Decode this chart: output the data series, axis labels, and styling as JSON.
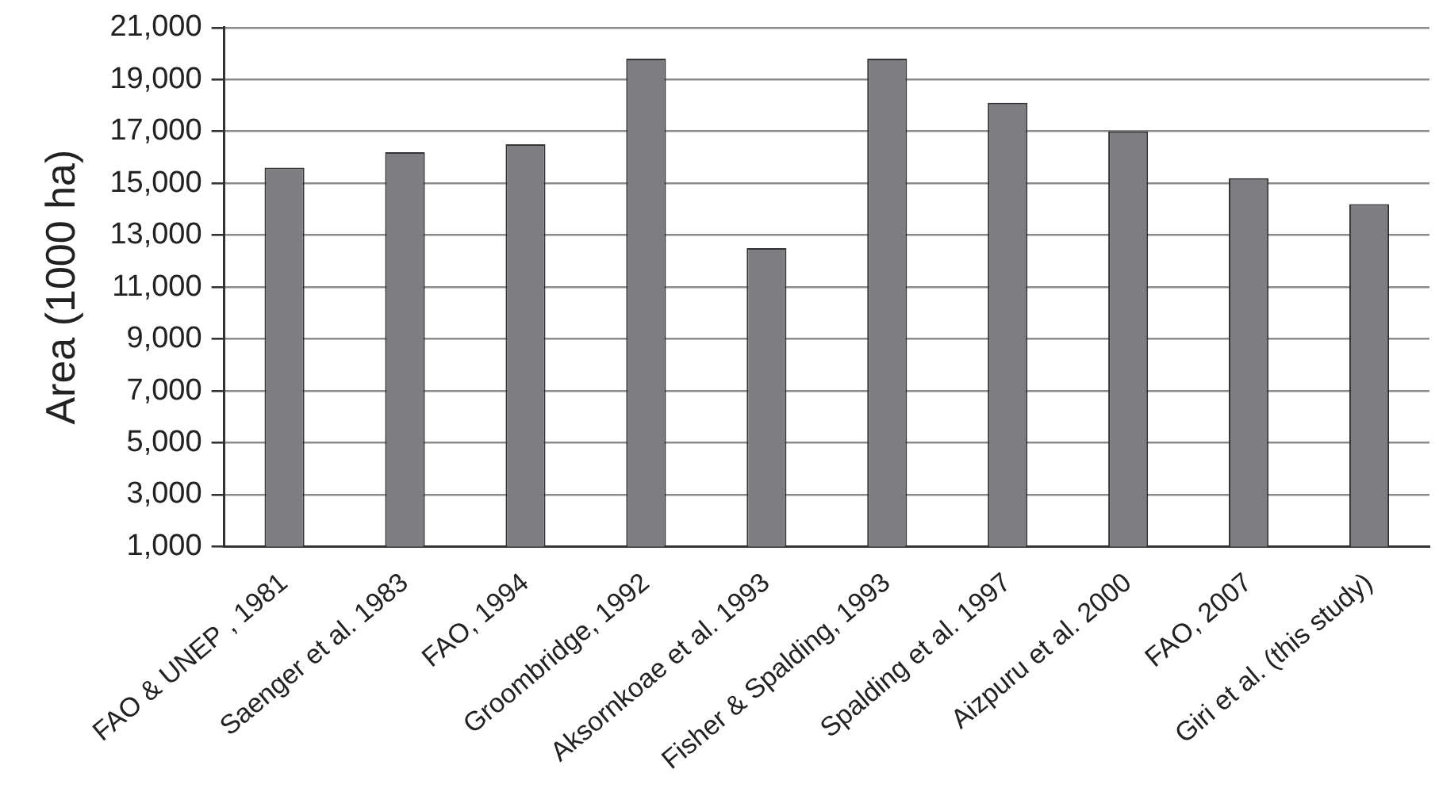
{
  "chart_data": {
    "type": "bar",
    "ylabel": "Area (1000 ha)",
    "categories": [
      "FAO & UNEP , 1981",
      "Saenger et al. 1983",
      "FAO, 1994",
      "Groombridge, 1992",
      "Aksornkoae et al. 1993",
      "Fisher & Spalding, 1993",
      "Spalding et al. 1997",
      "Aizpuru et al. 2000",
      "FAO, 2007",
      "Giri et al. (this study)"
    ],
    "values": [
      15600,
      16200,
      16500,
      19800,
      12500,
      19800,
      18100,
      17000,
      15200,
      14200
    ],
    "color": "#7e7e82",
    "ylim": [
      1000,
      21000
    ],
    "yticks": [
      {
        "value": 1000,
        "label": "1,000"
      },
      {
        "value": 3000,
        "label": "3,000"
      },
      {
        "value": 5000,
        "label": "5,000"
      },
      {
        "value": 7000,
        "label": "7,000"
      },
      {
        "value": 9000,
        "label": "9,000"
      },
      {
        "value": 11000,
        "label": "11,000"
      },
      {
        "value": 13000,
        "label": "13,000"
      },
      {
        "value": 15000,
        "label": "15,000"
      },
      {
        "value": 17000,
        "label": "17,000"
      },
      {
        "value": 19000,
        "label": "19,000"
      },
      {
        "value": 21000,
        "label": "21,000"
      }
    ],
    "grid": "y",
    "legend": false
  }
}
